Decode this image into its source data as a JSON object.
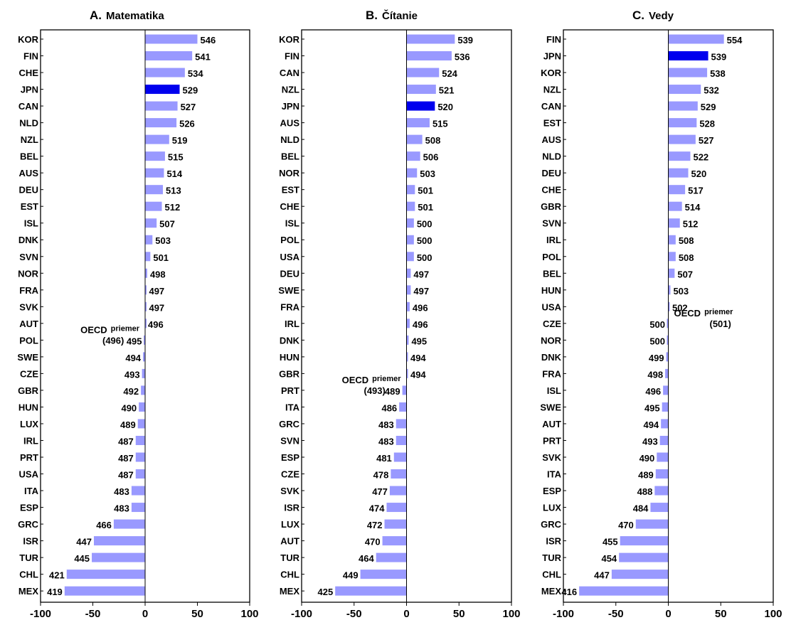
{
  "chart_data": [
    {
      "type": "bar",
      "orientation": "horizontal",
      "letter": "A.",
      "title": "Matematika",
      "baseline": 496,
      "baseline_label": "OECD",
      "baseline_sublabel": "priemer",
      "baseline_value_label": "(496)",
      "xlim": [
        -100,
        100
      ],
      "xticks": [
        "-100",
        "-50",
        "0",
        "50",
        "100"
      ],
      "highlight": "JPN",
      "categories": [
        "KOR",
        "FIN",
        "CHE",
        "JPN",
        "CAN",
        "NLD",
        "NZL",
        "BEL",
        "AUS",
        "DEU",
        "EST",
        "ISL",
        "DNK",
        "SVN",
        "NOR",
        "FRA",
        "SVK",
        "AUT",
        "POL",
        "SWE",
        "CZE",
        "GBR",
        "HUN",
        "LUX",
        "IRL",
        "PRT",
        "USA",
        "ITA",
        "ESP",
        "GRC",
        "ISR",
        "TUR",
        "CHL",
        "MEX"
      ],
      "values": [
        546,
        541,
        534,
        529,
        527,
        526,
        519,
        515,
        514,
        513,
        512,
        507,
        503,
        501,
        498,
        497,
        497,
        496,
        495,
        494,
        493,
        492,
        490,
        489,
        487,
        487,
        487,
        483,
        483,
        466,
        447,
        445,
        421,
        419
      ]
    },
    {
      "type": "bar",
      "orientation": "horizontal",
      "letter": "B.",
      "title": "Čítanie",
      "baseline": 493,
      "baseline_label": "OECD",
      "baseline_sublabel": "priemer",
      "baseline_value_label": "(493)",
      "xlim": [
        -100,
        100
      ],
      "xticks": [
        "-100",
        "-50",
        "0",
        "50",
        "100"
      ],
      "highlight": "JPN",
      "categories": [
        "KOR",
        "FIN",
        "CAN",
        "NZL",
        "JPN",
        "AUS",
        "NLD",
        "BEL",
        "NOR",
        "EST",
        "CHE",
        "ISL",
        "POL",
        "USA",
        "DEU",
        "SWE",
        "FRA",
        "IRL",
        "DNK",
        "HUN",
        "GBR",
        "PRT",
        "ITA",
        "GRC",
        "SVN",
        "ESP",
        "CZE",
        "SVK",
        "ISR",
        "LUX",
        "AUT",
        "TUR",
        "CHL",
        "MEX"
      ],
      "values": [
        539,
        536,
        524,
        521,
        520,
        515,
        508,
        506,
        503,
        501,
        501,
        500,
        500,
        500,
        497,
        497,
        496,
        496,
        495,
        494,
        494,
        489,
        486,
        483,
        483,
        481,
        478,
        477,
        474,
        472,
        470,
        464,
        449,
        425
      ]
    },
    {
      "type": "bar",
      "orientation": "horizontal",
      "letter": "C.",
      "title": "Vedy",
      "baseline": 501,
      "baseline_label": "OECD",
      "baseline_sublabel": "priemer",
      "baseline_value_label": "(501)",
      "xlim": [
        -100,
        100
      ],
      "xticks": [
        "-100",
        "-50",
        "0",
        "50",
        "100"
      ],
      "highlight": "JPN",
      "categories": [
        "FIN",
        "JPN",
        "KOR",
        "NZL",
        "CAN",
        "EST",
        "AUS",
        "NLD",
        "DEU",
        "CHE",
        "GBR",
        "SVN",
        "IRL",
        "POL",
        "BEL",
        "HUN",
        "USA",
        "CZE",
        "NOR",
        "DNK",
        "FRA",
        "ISL",
        "SWE",
        "AUT",
        "PRT",
        "SVK",
        "ITA",
        "ESP",
        "LUX",
        "GRC",
        "ISR",
        "TUR",
        "CHL",
        "MEX"
      ],
      "values": [
        554,
        539,
        538,
        532,
        529,
        528,
        527,
        522,
        520,
        517,
        514,
        512,
        508,
        508,
        507,
        503,
        502,
        500,
        500,
        499,
        498,
        496,
        495,
        494,
        493,
        490,
        489,
        488,
        484,
        470,
        455,
        454,
        447,
        416
      ]
    }
  ],
  "colors": {
    "bar": "#9999ff",
    "highlight": "#0000ee",
    "axis": "#000000"
  }
}
